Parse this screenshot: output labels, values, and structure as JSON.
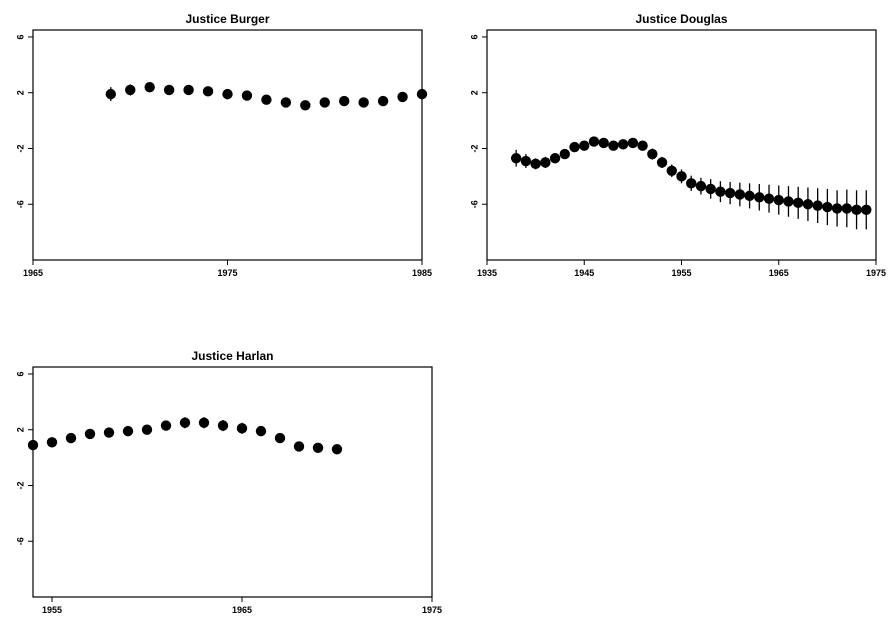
{
  "chart_data": [
    {
      "type": "scatter",
      "title": "Justice Burger",
      "xlabel": "",
      "ylabel": "",
      "xlim": [
        1965,
        1985
      ],
      "ylim": [
        -10,
        6.5
      ],
      "xticks": [
        "1965",
        "1975",
        "1985"
      ],
      "yticks": [
        "6",
        "2",
        "-2",
        "-6"
      ],
      "grid": false,
      "x": [
        1969,
        1970,
        1971,
        1972,
        1973,
        1974,
        1975,
        1976,
        1977,
        1978,
        1979,
        1980,
        1981,
        1982,
        1983,
        1984,
        1985
      ],
      "y": [
        1.9,
        2.2,
        2.4,
        2.2,
        2.2,
        2.1,
        1.9,
        1.8,
        1.5,
        1.3,
        1.1,
        1.3,
        1.4,
        1.3,
        1.4,
        1.7,
        1.9
      ],
      "err": [
        0.5,
        0.4,
        0.35,
        0.3,
        0.3,
        0.3,
        0.3,
        0.3,
        0.3,
        0.3,
        0.3,
        0.3,
        0.3,
        0.3,
        0.3,
        0.35,
        0.4
      ]
    },
    {
      "type": "scatter",
      "title": "Justice Douglas",
      "xlabel": "",
      "ylabel": "",
      "xlim": [
        1935,
        1975
      ],
      "ylim": [
        -10,
        6.5
      ],
      "xticks": [
        "1935",
        "1945",
        "1955",
        "1965",
        "1975"
      ],
      "yticks": [
        "6",
        "2",
        "-2",
        "-6"
      ],
      "grid": false,
      "x": [
        1938,
        1939,
        1940,
        1941,
        1942,
        1943,
        1944,
        1945,
        1946,
        1947,
        1948,
        1949,
        1950,
        1951,
        1952,
        1953,
        1954,
        1955,
        1956,
        1957,
        1958,
        1959,
        1960,
        1961,
        1962,
        1963,
        1964,
        1965,
        1966,
        1967,
        1968,
        1969,
        1970,
        1971,
        1972,
        1973,
        1974
      ],
      "y": [
        -2.7,
        -2.9,
        -3.1,
        -3.0,
        -2.7,
        -2.4,
        -1.9,
        -1.8,
        -1.5,
        -1.6,
        -1.8,
        -1.7,
        -1.6,
        -1.8,
        -2.4,
        -3.0,
        -3.6,
        -4.0,
        -4.5,
        -4.7,
        -4.9,
        -5.1,
        -5.2,
        -5.3,
        -5.4,
        -5.5,
        -5.6,
        -5.7,
        -5.8,
        -5.9,
        -6.0,
        -6.1,
        -6.2,
        -6.3,
        -6.3,
        -6.4,
        -6.4
      ],
      "err": [
        0.6,
        0.5,
        0.4,
        0.4,
        0.35,
        0.3,
        0.3,
        0.3,
        0.3,
        0.3,
        0.3,
        0.3,
        0.3,
        0.35,
        0.4,
        0.4,
        0.45,
        0.5,
        0.55,
        0.6,
        0.7,
        0.75,
        0.8,
        0.85,
        0.9,
        0.95,
        1.0,
        1.05,
        1.1,
        1.15,
        1.2,
        1.25,
        1.3,
        1.3,
        1.35,
        1.4,
        1.4
      ]
    },
    {
      "type": "scatter",
      "title": "Justice Harlan",
      "xlabel": "",
      "ylabel": "",
      "xlim": [
        1954,
        1975
      ],
      "ylim": [
        -10,
        6.5
      ],
      "xticks": [
        "1955",
        "1965",
        "1975"
      ],
      "yticks": [
        "6",
        "2",
        "-2",
        "-6"
      ],
      "grid": false,
      "x": [
        1954,
        1955,
        1956,
        1957,
        1958,
        1959,
        1960,
        1961,
        1962,
        1963,
        1964,
        1965,
        1966,
        1967,
        1968,
        1969,
        1970
      ],
      "y": [
        0.9,
        1.1,
        1.4,
        1.7,
        1.8,
        1.9,
        2.0,
        2.3,
        2.5,
        2.5,
        2.3,
        2.1,
        1.9,
        1.4,
        0.8,
        0.7,
        0.6
      ],
      "err": [
        0.3,
        0.3,
        0.3,
        0.3,
        0.3,
        0.3,
        0.3,
        0.35,
        0.4,
        0.4,
        0.4,
        0.4,
        0.3,
        0.3,
        0.3,
        0.3,
        0.3
      ]
    }
  ]
}
